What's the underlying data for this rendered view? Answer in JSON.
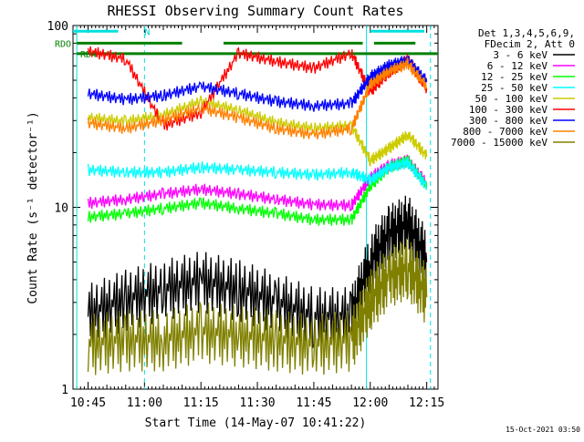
{
  "chart_data": {
    "type": "line",
    "title": "RHESSI Observing Summary Count Rates",
    "xlabel": "Start Time (14-May-07 10:41:22)",
    "ylabel": "Count Rate (s⁻¹ detector⁻¹)",
    "y_scale": "log",
    "ylim": [
      1,
      100
    ],
    "xlim": [
      "10:41",
      "12:18"
    ],
    "x_ticks": [
      "10:45",
      "11:00",
      "11:15",
      "11:30",
      "11:45",
      "12:00",
      "12:15"
    ],
    "y_ticks": [
      "1",
      "10",
      "100"
    ],
    "grid": false,
    "legend_position": "right",
    "legend_header": [
      "Det 1,3,4,5,6,9,",
      "FDecim 2, Att 0"
    ],
    "footer_date": "15-Oct-2021 03:50",
    "markers": {
      "rdo_label": "RDO",
      "rd4_label": "RD4",
      "n_label": "N",
      "dashed_vlines": [
        "11:00",
        "12:16"
      ],
      "solid_vlines": [
        "10:42",
        "11:59"
      ]
    },
    "series": [
      {
        "name": "3 - 6 keV",
        "color": "#000000",
        "x": [
          "10:45",
          "10:55",
          "11:05",
          "11:15",
          "11:25",
          "11:35",
          "11:45",
          "11:55",
          "12:00",
          "12:05",
          "12:10",
          "12:15"
        ],
        "values": [
          2.5,
          3.0,
          3.4,
          3.8,
          3.4,
          2.9,
          2.4,
          2.4,
          4.8,
          6.8,
          7.8,
          5.0
        ]
      },
      {
        "name": "6 - 12 keV",
        "color": "#ff00ff",
        "x": [
          "10:45",
          "10:55",
          "11:05",
          "11:15",
          "11:25",
          "11:35",
          "11:45",
          "11:55",
          "12:00",
          "12:05",
          "12:10",
          "12:15"
        ],
        "values": [
          10.5,
          11.0,
          11.8,
          12.5,
          11.8,
          11.0,
          10.3,
          10.2,
          14.5,
          17.0,
          18.0,
          13.5
        ]
      },
      {
        "name": "12 - 25 keV",
        "color": "#00ff00",
        "x": [
          "10:45",
          "10:55",
          "11:05",
          "11:15",
          "11:25",
          "11:35",
          "11:45",
          "11:55",
          "12:00",
          "12:05",
          "12:10",
          "12:15"
        ],
        "values": [
          8.8,
          9.2,
          9.8,
          10.5,
          9.8,
          9.2,
          8.5,
          8.5,
          13.0,
          16.5,
          18.0,
          13.0
        ]
      },
      {
        "name": "25 - 50 keV",
        "color": "#00ffff",
        "x": [
          "10:45",
          "10:55",
          "11:05",
          "11:15",
          "11:25",
          "11:35",
          "11:45",
          "11:55",
          "12:00",
          "12:05",
          "12:10",
          "12:15"
        ],
        "values": [
          16.0,
          15.5,
          15.5,
          16.5,
          16.0,
          15.5,
          15.0,
          15.5,
          14.0,
          16.5,
          17.5,
          13.0
        ]
      },
      {
        "name": "50 - 100 keV",
        "color": "#cccc00",
        "x": [
          "10:45",
          "10:55",
          "11:05",
          "11:15",
          "11:25",
          "11:35",
          "11:45",
          "11:55",
          "12:00",
          "12:05",
          "12:10",
          "12:15"
        ],
        "values": [
          31.0,
          29.5,
          32.0,
          38.0,
          34.0,
          29.0,
          27.0,
          28.0,
          18.0,
          21.0,
          25.0,
          19.0
        ]
      },
      {
        "name": "100 - 300 keV",
        "color": "#ff0000",
        "x": [
          "10:45",
          "10:55",
          "11:05",
          "11:15",
          "11:25",
          "11:35",
          "11:45",
          "11:55",
          "12:00",
          "12:05",
          "12:10",
          "12:15"
        ],
        "values": [
          72.0,
          65.0,
          28.0,
          33.0,
          70.0,
          63.0,
          58.0,
          70.0,
          43.0,
          55.0,
          65.0,
          45.0
        ]
      },
      {
        "name": "300 - 800 keV",
        "color": "#0000ff",
        "x": [
          "10:45",
          "10:55",
          "11:05",
          "11:15",
          "11:25",
          "11:35",
          "11:45",
          "11:55",
          "12:00",
          "12:05",
          "12:10",
          "12:15"
        ],
        "values": [
          42.0,
          39.0,
          41.0,
          46.0,
          42.0,
          38.0,
          36.0,
          37.0,
          52.0,
          60.0,
          64.0,
          49.0
        ]
      },
      {
        "name": "800 - 7000 keV",
        "color": "#ff8000",
        "x": [
          "10:45",
          "10:55",
          "11:05",
          "11:15",
          "11:25",
          "11:35",
          "11:45",
          "11:55",
          "12:00",
          "12:05",
          "12:10",
          "12:15"
        ],
        "values": [
          29.0,
          27.0,
          30.0,
          35.0,
          31.0,
          27.0,
          25.0,
          27.0,
          47.0,
          56.0,
          61.0,
          46.0
        ]
      },
      {
        "name": "7000 - 15000 keV",
        "color": "#808000",
        "x": [
          "10:45",
          "10:55",
          "11:05",
          "11:15",
          "11:25",
          "11:35",
          "11:45",
          "11:55",
          "12:00",
          "12:05",
          "12:10",
          "12:15"
        ],
        "values": [
          1.7,
          1.8,
          1.8,
          2.0,
          1.9,
          1.8,
          1.7,
          1.8,
          3.0,
          4.0,
          4.5,
          3.2
        ]
      }
    ],
    "rdo_level": 80.0,
    "rd4_level": 70.0,
    "n_level": 93.0
  }
}
